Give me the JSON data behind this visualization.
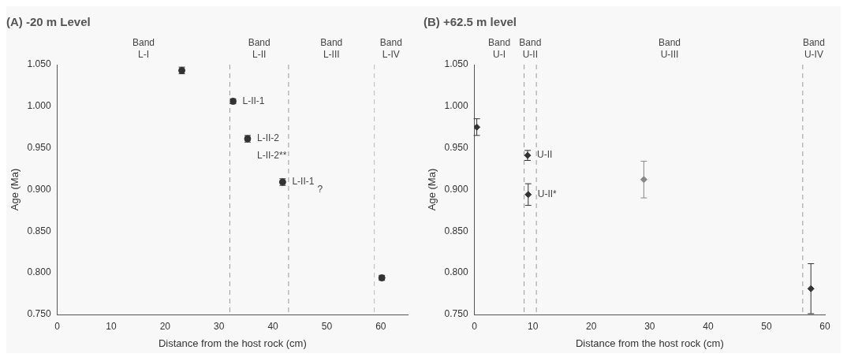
{
  "chart_data": [
    {
      "type": "scatter",
      "title": "(A) -20 m Level",
      "xlabel": "Distance from the host rock (cm)",
      "ylabel": "Age (Ma)",
      "x": [
        23.1,
        32.6,
        35.3,
        41.8,
        60.2
      ],
      "values": [
        1.043,
        1.006,
        0.961,
        0.909,
        0.794
      ],
      "errors": [
        0.004,
        0.003,
        0.004,
        0.004,
        0.003
      ],
      "colors": [
        "#333333",
        "#333333",
        "#333333",
        "#333333",
        "#333333"
      ],
      "marker": "circle",
      "xlim": [
        0,
        65
      ],
      "xticks": [
        0,
        10,
        20,
        30,
        40,
        50,
        60
      ],
      "ylim": [
        0.75,
        1.05
      ],
      "yticks": [
        {
          "value": 0.75,
          "label": "0.750"
        },
        {
          "value": 0.8,
          "label": "0.800"
        },
        {
          "value": 0.85,
          "label": "0.850"
        },
        {
          "value": 0.9,
          "label": "0.900"
        },
        {
          "value": 0.95,
          "label": "0.950"
        },
        {
          "value": 1.0,
          "label": "1.000"
        },
        {
          "value": 1.05,
          "label": "1.050"
        }
      ],
      "grid": false,
      "legend": false,
      "ref_lines": [
        {
          "axis": "x",
          "value": 32,
          "line_style": "dashed",
          "color": "#999999"
        },
        {
          "axis": "x",
          "value": 42.9,
          "line_style": "dashed",
          "color": "#999999"
        },
        {
          "axis": "x",
          "value": 58.8,
          "line_style": "dashed",
          "color": "#bbbbbb"
        }
      ],
      "annotations": [
        "Band\nL-I",
        "Band\nL-II",
        "Band\nL-III",
        "Band\nL-IV",
        {
          "text": "L-II-1",
          "x": 32.6,
          "y": 1.006
        },
        {
          "text": "L-II-2",
          "x": 35.3,
          "y": 0.961
        },
        {
          "text": "L-II-2**",
          "x": 35.3,
          "y": 0.961
        },
        {
          "text": "L-II-1",
          "x": 41.8,
          "y": 0.909
        },
        "?"
      ]
    },
    {
      "type": "scatter",
      "title": "(B) +62.5 m level",
      "xlabel": "Distance from the host rock (cm)",
      "ylabel": "Age (Ma)",
      "x": [
        0.4,
        9.1,
        9.2,
        29.0,
        57.6
      ],
      "values": [
        0.975,
        0.941,
        0.894,
        0.912,
        0.781
      ],
      "errors": [
        0.01,
        0.006,
        0.013,
        0.022,
        0.03
      ],
      "colors": [
        "#333333",
        "#333333",
        "#333333",
        "#888888",
        "#333333"
      ],
      "marker": "diamond",
      "xlim": [
        0,
        60
      ],
      "xticks": [
        0,
        10,
        20,
        30,
        40,
        50,
        60
      ],
      "ylim": [
        0.75,
        1.05
      ],
      "yticks": [
        {
          "value": 0.75,
          "label": "0.750"
        },
        {
          "value": 0.8,
          "label": "0.800"
        },
        {
          "value": 0.85,
          "label": "0.850"
        },
        {
          "value": 0.9,
          "label": "0.900"
        },
        {
          "value": 0.95,
          "label": "0.950"
        },
        {
          "value": 1.0,
          "label": "1.000"
        },
        {
          "value": 1.05,
          "label": "1.050"
        }
      ],
      "grid": false,
      "legend": false,
      "ref_lines": [
        {
          "axis": "x",
          "value": 8.5,
          "line_style": "dashed",
          "color": "#999999"
        },
        {
          "axis": "x",
          "value": 10.6,
          "line_style": "dashed",
          "color": "#999999"
        },
        {
          "axis": "x",
          "value": 56.2,
          "line_style": "dashed",
          "color": "#999999"
        }
      ],
      "annotations": [
        "Band\nU-I",
        "Band\nU-II",
        "Band\nU-III",
        "Band\nU-IV",
        {
          "text": "U-II",
          "x": 9.1,
          "y": 0.941
        },
        {
          "text": "U-II*",
          "x": 9.2,
          "y": 0.894
        }
      ]
    }
  ]
}
